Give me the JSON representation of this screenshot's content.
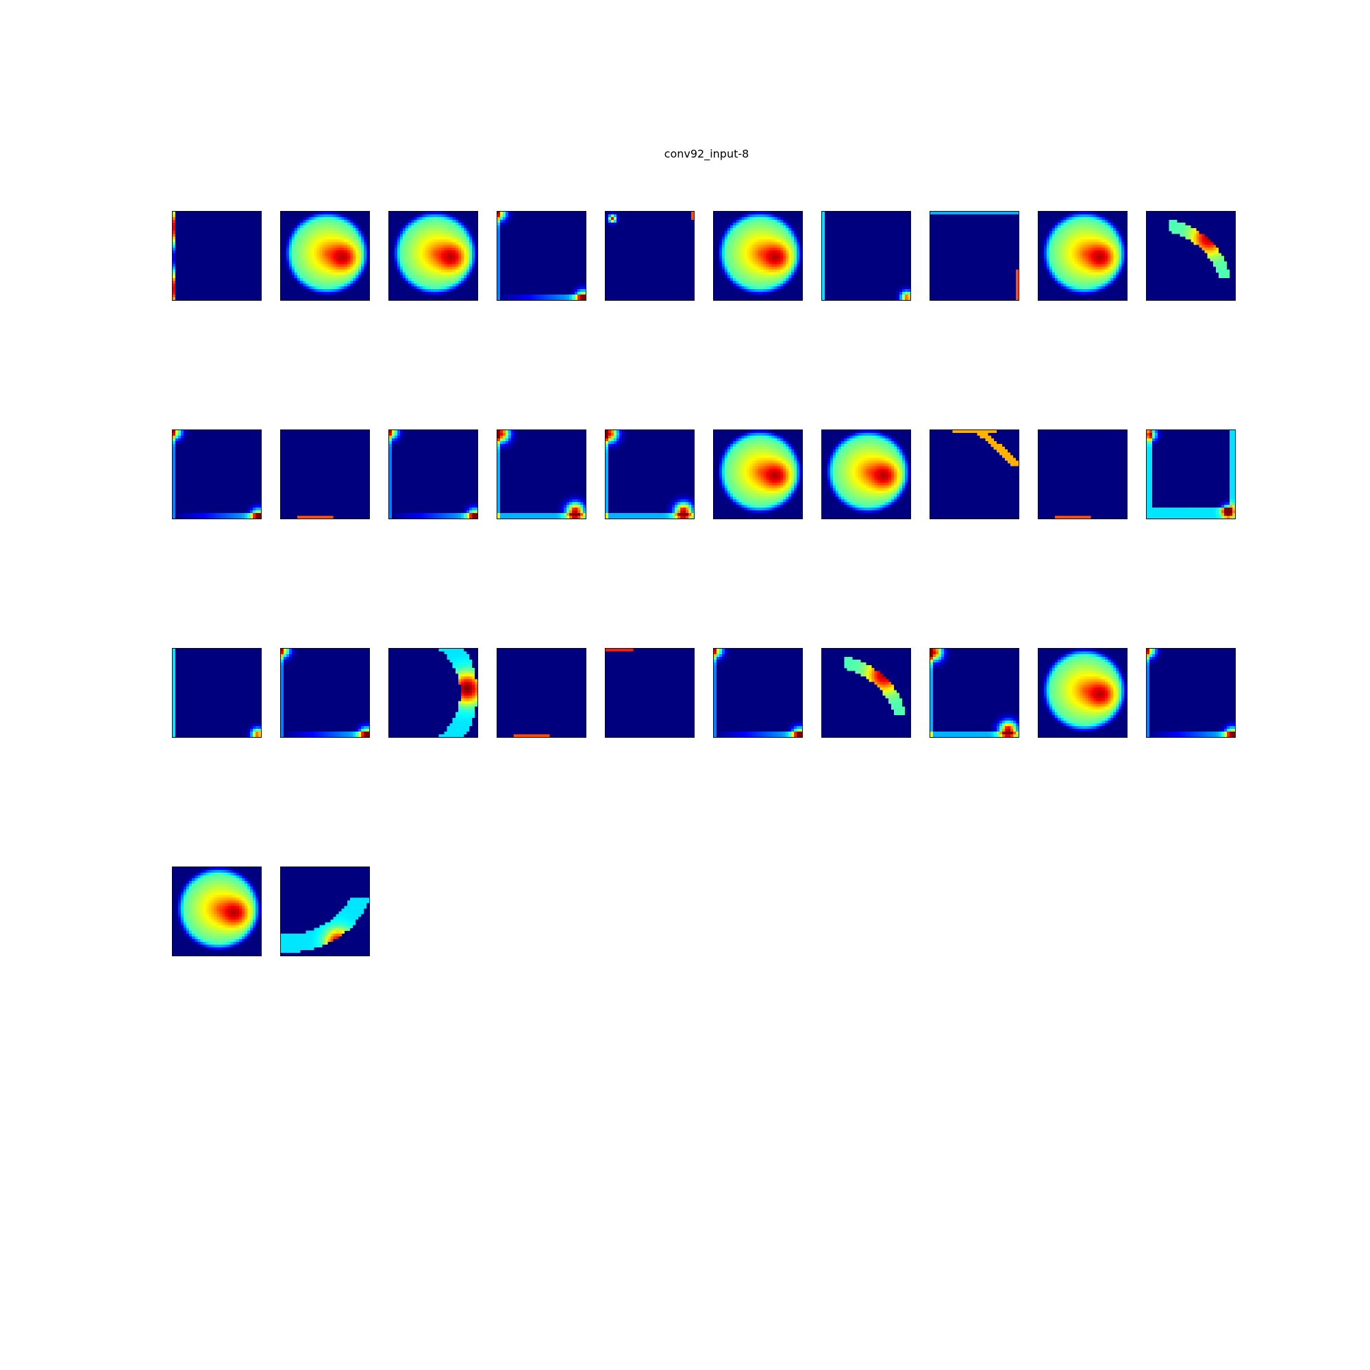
{
  "figure": {
    "title": "conv92_input-8"
  },
  "chart_data": {
    "type": "heatmap",
    "title": "conv92_input-8",
    "layout": {
      "rows": 4,
      "cols": 10
    },
    "colormap": "jet",
    "colors": {
      "low": "#00007f",
      "mid": "#7fff7f",
      "high": "#7f0000",
      "background": "#ffffff"
    },
    "panels": [
      {
        "index": 0,
        "pattern": "edge-left"
      },
      {
        "index": 1,
        "pattern": "blob-d"
      },
      {
        "index": 2,
        "pattern": "blob-d"
      },
      {
        "index": 3,
        "pattern": "corners-tl-br"
      },
      {
        "index": 4,
        "pattern": "speck-top-left"
      },
      {
        "index": 5,
        "pattern": "blob-d"
      },
      {
        "index": 6,
        "pattern": "corner-br-small"
      },
      {
        "index": 7,
        "pattern": "edge-right-small"
      },
      {
        "index": 8,
        "pattern": "blob-d"
      },
      {
        "index": 9,
        "pattern": "arc-top-right"
      },
      {
        "index": 10,
        "pattern": "corners-tl-br"
      },
      {
        "index": 11,
        "pattern": "edge-bottom-small"
      },
      {
        "index": 12,
        "pattern": "corners-tl-br"
      },
      {
        "index": 13,
        "pattern": "corners-tl-br-strong"
      },
      {
        "index": 14,
        "pattern": "corners-tl-br-strong"
      },
      {
        "index": 15,
        "pattern": "blob-d"
      },
      {
        "index": 16,
        "pattern": "blob-d"
      },
      {
        "index": 17,
        "pattern": "diag-top-right"
      },
      {
        "index": 18,
        "pattern": "edge-bottom-small"
      },
      {
        "index": 19,
        "pattern": "frame-br"
      },
      {
        "index": 20,
        "pattern": "corner-br-small"
      },
      {
        "index": 21,
        "pattern": "corners-tl-br"
      },
      {
        "index": 22,
        "pattern": "crescent-right"
      },
      {
        "index": 23,
        "pattern": "edge-bottom-small"
      },
      {
        "index": 24,
        "pattern": "edge-top-small"
      },
      {
        "index": 25,
        "pattern": "corners-tl-br"
      },
      {
        "index": 26,
        "pattern": "arc-top-right"
      },
      {
        "index": 27,
        "pattern": "corners-tl-br-strong"
      },
      {
        "index": 28,
        "pattern": "blob-d"
      },
      {
        "index": 29,
        "pattern": "corners-tl-br"
      },
      {
        "index": 30,
        "pattern": "blob-d"
      },
      {
        "index": 31,
        "pattern": "arc-bottom"
      }
    ]
  }
}
